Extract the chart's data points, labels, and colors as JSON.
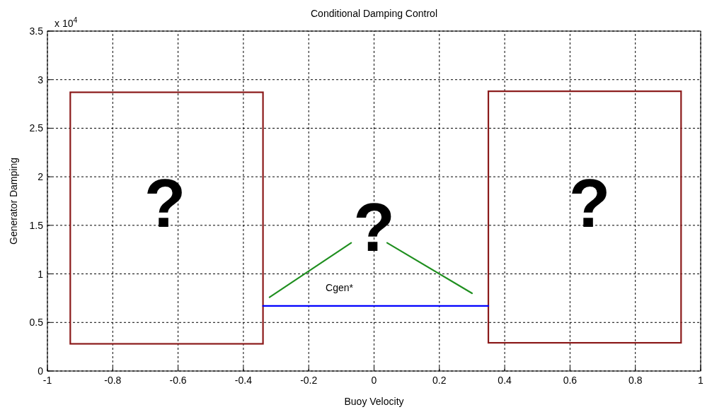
{
  "chart_data": {
    "type": "line",
    "title": "Conditional Damping Control",
    "xlabel": "Buoy Velocity",
    "ylabel": "Generator Damping",
    "xlim": [
      -1,
      1
    ],
    "xticks": [
      -1,
      -0.8,
      -0.6,
      -0.4,
      -0.2,
      0,
      0.2,
      0.4,
      0.6,
      0.8,
      1
    ],
    "ylim": [
      0,
      3.5
    ],
    "yticks": [
      0,
      0.5,
      1,
      1.5,
      2,
      2.5,
      3,
      3.5
    ],
    "grid": true,
    "marker": "none",
    "line_style": "solid",
    "series": [
      {
        "color": "#0000ff",
        "x": [
          -0.34,
          0.35
        ],
        "values": [
          0.67,
          0.67
        ]
      },
      {
        "color": "#1f8f1f",
        "x": [
          -0.32,
          -0.07
        ],
        "values": [
          0.76,
          1.32
        ]
      },
      {
        "color": "#1f8f1f",
        "x": [
          0.04,
          0.3
        ],
        "values": [
          1.32,
          0.8
        ]
      }
    ],
    "annotations": [
      "x 10$^{4}$",
      "?",
      "?",
      "?",
      "Cgen*"
    ]
  }
}
